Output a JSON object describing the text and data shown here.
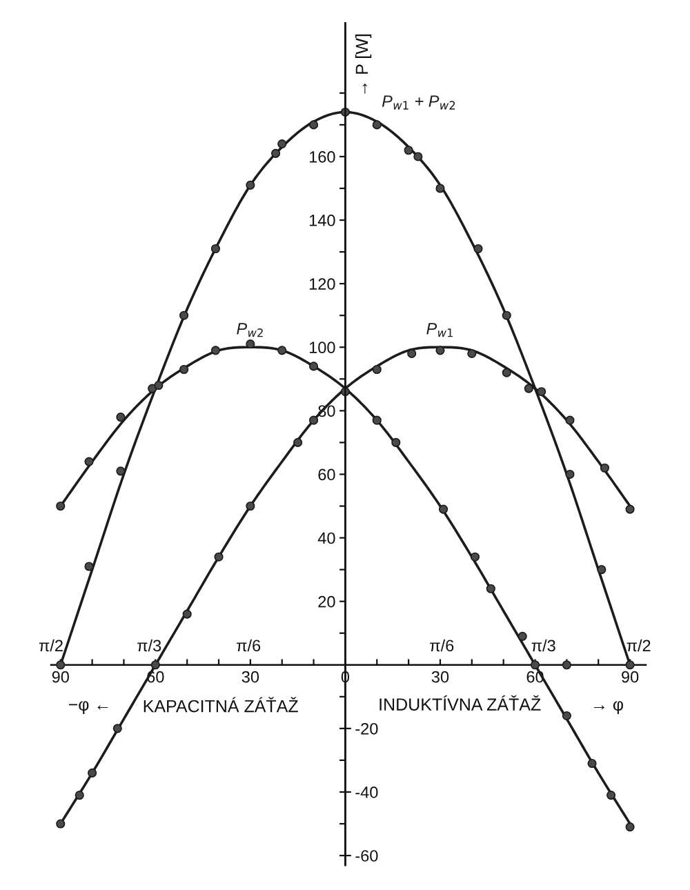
{
  "chart_data": {
    "type": "line",
    "xlabel": "→ φ",
    "y2label": "→ P [W]",
    "annotations": [
      "π/2",
      "π/3",
      "π/6",
      "π/6",
      "π/3",
      "π/2",
      "−φ ←",
      "KAPACITNÁ ZÁŤAŽ",
      "INDUKTÍVNA ZÁŤAŽ"
    ],
    "xlim": [
      -93,
      95
    ],
    "xticks": [
      {
        "value": -90,
        "label": "90"
      },
      {
        "value": -80,
        "label": null
      },
      {
        "value": -70,
        "label": null
      },
      {
        "value": -60,
        "label": "60"
      },
      {
        "value": -50,
        "label": null
      },
      {
        "value": -40,
        "label": null
      },
      {
        "value": -30,
        "label": "30"
      },
      {
        "value": -20,
        "label": null
      },
      {
        "value": -10,
        "label": null
      },
      0,
      {
        "value": 10,
        "label": null
      },
      {
        "value": 20,
        "label": null
      },
      30,
      {
        "value": 40,
        "label": null
      },
      {
        "value": 50,
        "label": null
      },
      60,
      {
        "value": 70,
        "label": null
      },
      {
        "value": 80,
        "label": null
      },
      90
    ],
    "ylim": [
      -63,
      202
    ],
    "yticks": [
      {
        "value": -60,
        "label": null
      },
      {
        "value": -50,
        "label": null
      },
      {
        "value": -40,
        "label": null
      },
      {
        "value": -30,
        "label": null
      },
      {
        "value": -20,
        "label": null
      },
      {
        "value": -10,
        "label": null
      },
      {
        "value": 10,
        "label": null
      },
      20,
      {
        "value": 30,
        "label": null
      },
      40,
      {
        "value": 50,
        "label": null
      },
      60,
      {
        "value": 70,
        "label": null
      },
      80,
      {
        "value": 90,
        "label": null
      },
      100,
      {
        "value": 110,
        "label": null
      },
      120,
      {
        "value": 130,
        "label": null
      },
      140,
      {
        "value": 150,
        "label": null
      },
      160,
      {
        "value": 170,
        "label": null
      },
      {
        "value": 180,
        "label": null
      }
    ],
    "y2lim": [
      -63,
      202
    ],
    "y2ticks": [
      -60,
      -40,
      -20
    ],
    "series": [
      {
        "name": "P$_{w1}$ + P$_{w2}$",
        "color": "#1c1c1c",
        "x": [
          -90,
          -80,
          -70,
          -60,
          -50,
          -40,
          -30,
          -20,
          -10,
          0,
          10,
          20,
          30,
          40,
          50,
          60,
          70,
          80,
          90
        ],
        "values": [
          0,
          30,
          60,
          87,
          112,
          133,
          151,
          163,
          171,
          174,
          171,
          163,
          151,
          133,
          112,
          87,
          60,
          30,
          0
        ]
      },
      {
        "name": "P$_{w2}$",
        "color": "#1c1c1c",
        "x": [
          -90,
          -80,
          -70,
          -60,
          -50,
          -40,
          -30,
          -20,
          -10,
          0,
          10,
          20,
          30,
          40,
          50,
          60,
          70,
          80,
          90
        ],
        "values": [
          50,
          64,
          77,
          87,
          94,
          99,
          100,
          99,
          94,
          87,
          77,
          64,
          50,
          34,
          17,
          0,
          -17,
          -34,
          -50
        ]
      },
      {
        "name": "P$_{w1}$",
        "color": "#1c1c1c",
        "x": [
          -90,
          -80,
          -70,
          -60,
          -50,
          -40,
          -30,
          -20,
          -10,
          0,
          10,
          20,
          30,
          40,
          50,
          60,
          70,
          80,
          90
        ],
        "values": [
          -50,
          -34,
          -17,
          0,
          17,
          34,
          50,
          64,
          77,
          87,
          94,
          99,
          100,
          99,
          94,
          87,
          77,
          64,
          50
        ]
      },
      {
        "type": "scatter",
        "marker": "circle",
        "color": "#4a4a4a",
        "x": [
          -90,
          -81,
          -71,
          -61,
          -51,
          -41,
          -30,
          -22,
          -20,
          -10,
          0,
          10,
          20,
          23,
          30,
          42,
          51,
          62,
          71,
          81,
          90
        ],
        "values": [
          0,
          31,
          61,
          87,
          110,
          131,
          151,
          161,
          164,
          170,
          174,
          170,
          162,
          160,
          150,
          131,
          110,
          86,
          60,
          30,
          0
        ]
      },
      {
        "type": "scatter",
        "marker": "circle",
        "color": "#4a4a4a",
        "x": [
          -90,
          -81,
          -71,
          -59,
          -51,
          -41,
          -30,
          -20,
          -10,
          10,
          16,
          31,
          41,
          46,
          56,
          60,
          70,
          78,
          84,
          90
        ],
        "values": [
          50,
          64,
          78,
          88,
          93,
          99,
          101,
          99,
          94,
          77,
          70,
          49,
          34,
          24,
          9,
          0,
          -16,
          -31,
          -41,
          -51
        ]
      },
      {
        "type": "scatter",
        "marker": "circle",
        "color": "#4a4a4a",
        "x": [
          -90,
          -84,
          -80,
          -72,
          -60,
          -50,
          -40,
          -30,
          -15,
          -10,
          0,
          10,
          21,
          30,
          40,
          51,
          58,
          71,
          82,
          90
        ],
        "values": [
          -50,
          -41,
          -34,
          -20,
          0,
          16,
          34,
          50,
          70,
          77,
          86,
          93,
          98,
          99,
          98,
          92,
          87,
          77,
          62,
          49
        ]
      },
      {
        "type": "scatter",
        "marker": "circle",
        "color": "#4a4a4a",
        "x": [
          70
        ],
        "values": [
          0
        ]
      }
    ]
  }
}
